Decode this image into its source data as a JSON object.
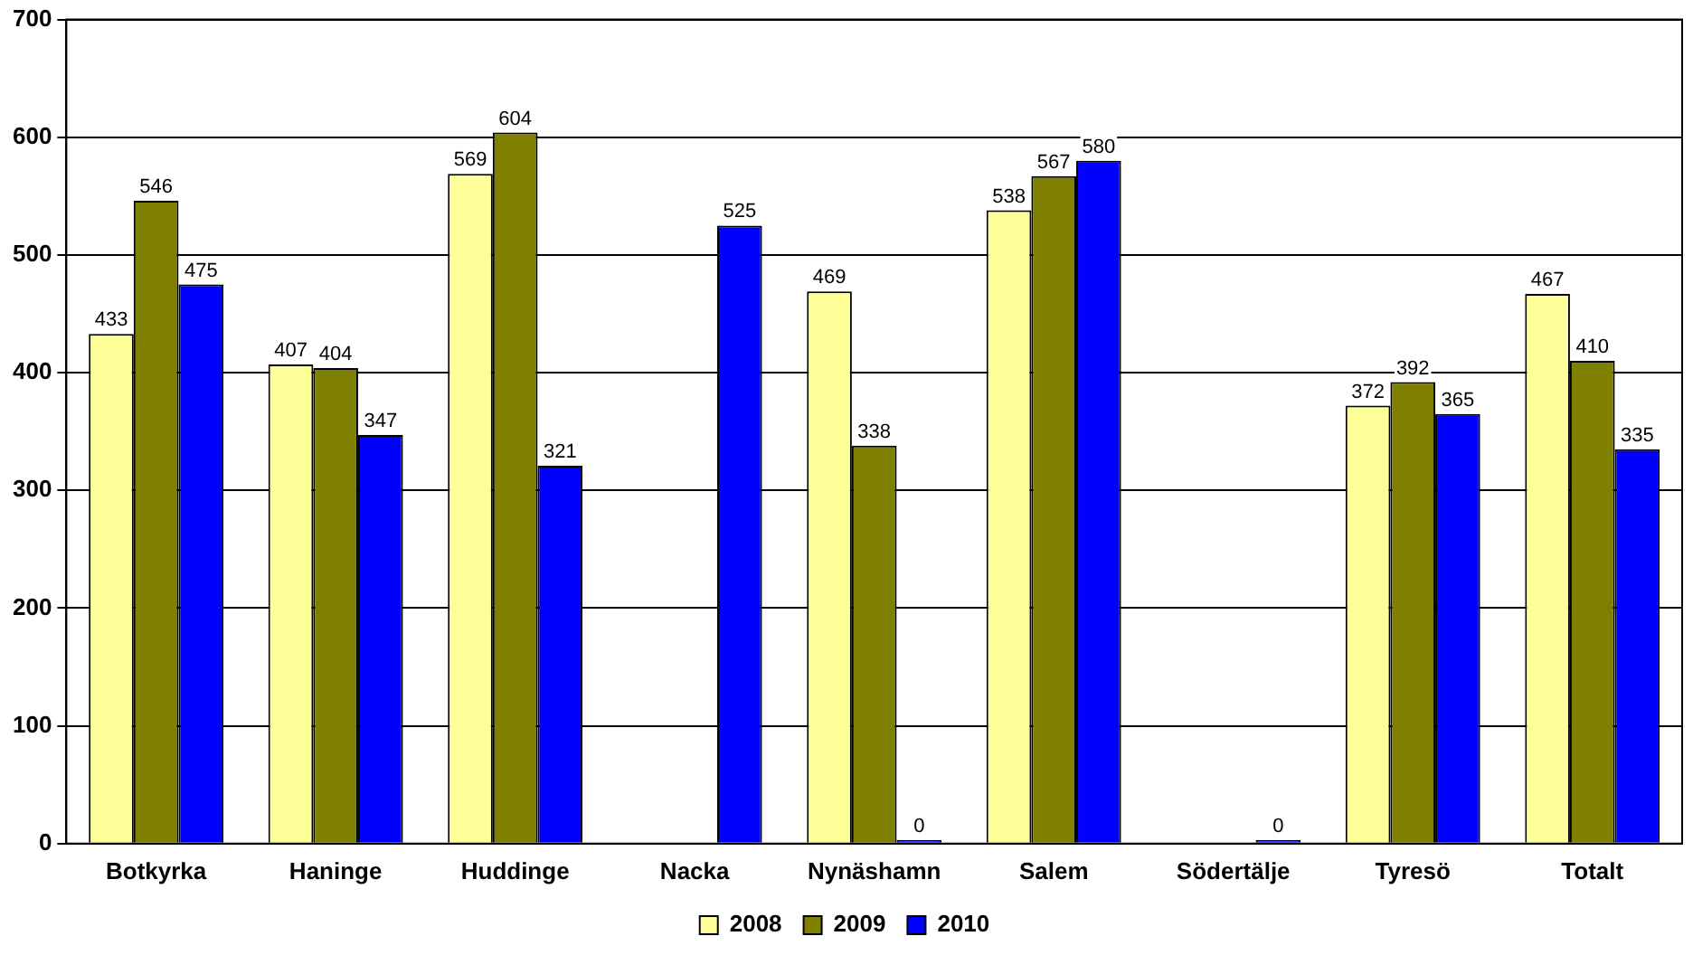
{
  "chart_data": {
    "type": "bar",
    "categories": [
      "Botkyrka",
      "Haninge",
      "Huddinge",
      "Nacka",
      "Nynäshamn",
      "Salem",
      "Södertälje",
      "Tyresö",
      "Totalt"
    ],
    "series": [
      {
        "name": "2008",
        "color": "#ffff99",
        "values": [
          433,
          407,
          569,
          null,
          469,
          538,
          null,
          372,
          467
        ]
      },
      {
        "name": "2009",
        "color": "#808000",
        "values": [
          546,
          404,
          604,
          null,
          338,
          567,
          null,
          392,
          410
        ]
      },
      {
        "name": "2010",
        "color": "#0000ff",
        "values": [
          475,
          347,
          321,
          525,
          0,
          580,
          0,
          365,
          335
        ]
      }
    ],
    "ylim": [
      0,
      700
    ],
    "yticks": [
      0,
      100,
      200,
      300,
      400,
      500,
      600,
      700
    ],
    "grid": "y",
    "legend": "bottom",
    "data_labels": true
  }
}
